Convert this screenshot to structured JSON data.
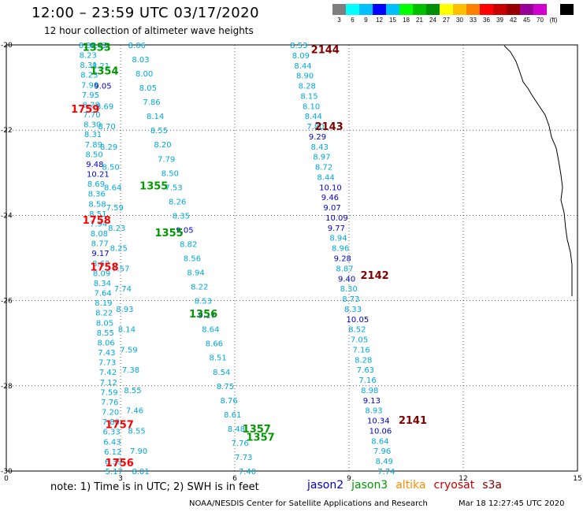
{
  "header": {
    "title": "12:00 – 23:59 UTC 03/17/2020",
    "subtitle": "12 hour collection of altimeter wave heights"
  },
  "color_scale": {
    "colors": [
      "#7f7f7f",
      "#00ffff",
      "#00bfff",
      "#0000ff",
      "#00bfff",
      "#00ff00",
      "#00bf00",
      "#008f00",
      "#ffff00",
      "#ffbf00",
      "#ff8000",
      "#ff0000",
      "#c80000",
      "#960000",
      "#960096",
      "#d000d0",
      "#ffffff",
      "#000000"
    ],
    "labels": [
      "3",
      "6",
      "9",
      "12",
      "15",
      "18",
      "21",
      "24",
      "27",
      "30",
      "33",
      "36",
      "39",
      "42",
      "45",
      "70",
      "(ft)"
    ]
  },
  "footer": {
    "note": "note:  1) Time is in UTC;  2) SWH is in feet",
    "satellites": [
      {
        "name": "jason2",
        "color": "#0000cc"
      },
      {
        "name": "jason3",
        "color": "#009900"
      },
      {
        "name": "altika",
        "color": "#ff8c00"
      },
      {
        "name": "cryosat",
        "color": "#cc0000"
      },
      {
        "name": "s3a",
        "color": "#800000"
      }
    ],
    "credit": "NOAA/NESDIS Center for Satellite Applications and Research",
    "timestamp": "Mar 18 12:27:45 UTC 2020"
  },
  "map": {
    "x_ticks": [
      "0",
      "3",
      "6",
      "9",
      "12",
      "15"
    ],
    "y_ticks": [
      "-20",
      "-22",
      "-24",
      "-26",
      "-28",
      "-30"
    ],
    "tracks": [
      {
        "name": "track-left-column",
        "x_start": 1.9,
        "x_end": 2.6,
        "values": [
          "8.38",
          "8.23",
          "8.31",
          "8.23",
          "7.98",
          "7.95",
          "8.28",
          "7.70",
          "8.30",
          "8.31",
          "7.89",
          "8.50",
          "9.48",
          "10.21",
          "8.69",
          "8.36",
          "8.58",
          "8.51",
          "7.94",
          "8.08",
          "8.77",
          "9.17",
          "8.62",
          "8.09",
          "8.34",
          "7.64",
          "8.19",
          "8.22",
          "8.05",
          "8.55",
          "8.06",
          "7.43",
          "7.73",
          "7.42",
          "7.12",
          "7.59",
          "7.76",
          "7.20",
          "7.80",
          "6.33",
          "6.43",
          "6.12",
          "6.39",
          "5.17"
        ]
      },
      {
        "name": "track-diagonal-upper",
        "x_start": 2.2,
        "x_end": 3.3,
        "values": [
          "8.62",
          "8.21",
          "9.05",
          "8.69",
          "8.70",
          "8.29",
          "8.50",
          "8.64",
          "7.59",
          "8.23",
          "8.25",
          "7.57",
          "7.74",
          "8.93",
          "8.14",
          "7.59",
          "7.38",
          "8.55",
          "7.46",
          "8.55",
          "7.90",
          "8.01"
        ]
      },
      {
        "name": "track-diagonal-lower",
        "x_start": 3.2,
        "x_end": 6.1,
        "values": [
          "8.06",
          "8.03",
          "8.00",
          "8.05",
          "7.86",
          "8.14",
          "8.55",
          "8.20",
          "7.79",
          "8.50",
          "7.53",
          "8.26",
          "8.35",
          "9.05",
          "8.82",
          "8.56",
          "8.94",
          "8.22",
          "8.53",
          "9.17",
          "8.64",
          "8.66",
          "8.51",
          "8.54",
          "8.75",
          "8.76",
          "8.61",
          "8.48",
          "7.76",
          "7.73",
          "7.40"
        ]
      },
      {
        "name": "track-right",
        "x_start": 7.45,
        "x_end": 9.75,
        "values": [
          "8.53",
          "8.09",
          "8.44",
          "8.90",
          "8.28",
          "8.15",
          "8.10",
          "8.44",
          "7.80",
          "9.29",
          "8.43",
          "8.97",
          "8.72",
          "8.44",
          "10.10",
          "9.46",
          "9.07",
          "10.09",
          "9.77",
          "8.94",
          "8.96",
          "9.28",
          "8.87",
          "9.40",
          "8.30",
          "8.73",
          "8.33",
          "10.05",
          "8.52",
          "7.05",
          "7.16",
          "8.28",
          "7.63",
          "7.16",
          "8.98",
          "9.13",
          "8.93",
          "10.34",
          "10.06",
          "8.64",
          "7.96",
          "8.49",
          "7.74"
        ]
      }
    ],
    "pass_labels": [
      {
        "text": "1353",
        "x": 2.0,
        "y": -20.05,
        "color": "#009900"
      },
      {
        "text": "1354",
        "x": 2.2,
        "y": -20.6,
        "color": "#009900"
      },
      {
        "text": "1759",
        "x": 1.7,
        "y": -21.5,
        "color": "#ff0000"
      },
      {
        "text": "1355",
        "x": 3.5,
        "y": -23.3,
        "color": "#009900"
      },
      {
        "text": "1758",
        "x": 2.0,
        "y": -24.1,
        "color": "#ff0000"
      },
      {
        "text": "1355",
        "x": 3.9,
        "y": -24.4,
        "color": "#009900"
      },
      {
        "text": "1758",
        "x": 2.2,
        "y": -25.2,
        "color": "#ff0000"
      },
      {
        "text": "1356",
        "x": 4.8,
        "y": -26.3,
        "color": "#009900"
      },
      {
        "text": "1357",
        "x": 6.2,
        "y": -29.0,
        "color": "#009900"
      },
      {
        "text": "1357",
        "x": 6.3,
        "y": -29.2,
        "color": "#009900"
      },
      {
        "text": "1757",
        "x": 2.6,
        "y": -28.9,
        "color": "#ff0000"
      },
      {
        "text": "1756",
        "x": 2.6,
        "y": -29.8,
        "color": "#ff0000"
      },
      {
        "text": "2144",
        "x": 8.0,
        "y": -20.1,
        "color": "#800000"
      },
      {
        "text": "2143",
        "x": 8.1,
        "y": -21.9,
        "color": "#800000"
      },
      {
        "text": "2142",
        "x": 9.3,
        "y": -25.4,
        "color": "#800000"
      },
      {
        "text": "2141",
        "x": 10.3,
        "y": -28.8,
        "color": "#800000"
      }
    ]
  }
}
